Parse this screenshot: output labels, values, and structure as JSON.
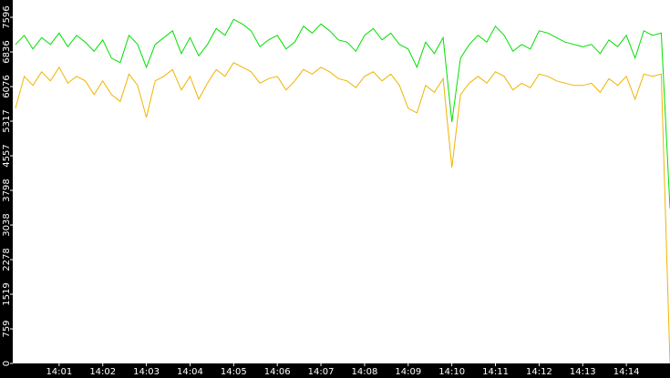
{
  "chart_data": {
    "type": "line",
    "categories": [
      null,
      null,
      null,
      null,
      null,
      "14:01",
      null,
      null,
      null,
      null,
      "14:02",
      null,
      null,
      null,
      null,
      "14:03",
      null,
      null,
      null,
      null,
      "14:04",
      null,
      null,
      null,
      null,
      "14:05",
      null,
      null,
      null,
      null,
      "14:06",
      null,
      null,
      null,
      null,
      "14:07",
      null,
      null,
      null,
      null,
      "14:08",
      null,
      null,
      null,
      null,
      "14:09",
      null,
      null,
      null,
      null,
      "14:10",
      null,
      null,
      null,
      null,
      "14:11",
      null,
      null,
      null,
      null,
      "14:12",
      null,
      null,
      null,
      null,
      "14:13",
      null,
      null,
      null,
      null,
      "14:14",
      null,
      null,
      null,
      null,
      null
    ],
    "series": [
      {
        "color": "#00e000",
        "values": [
          7000,
          7200,
          6900,
          7150,
          7000,
          7250,
          6950,
          7200,
          7050,
          6850,
          7100,
          6700,
          6600,
          7200,
          7000,
          6500,
          7000,
          7150,
          7300,
          6800,
          7150,
          6750,
          7000,
          7350,
          7200,
          7550,
          7450,
          7300,
          6950,
          7100,
          7200,
          6900,
          7050,
          7400,
          7250,
          7450,
          7300,
          7100,
          7050,
          6850,
          7200,
          7350,
          7100,
          7250,
          7000,
          6900,
          6500,
          7050,
          6800,
          7150,
          5300,
          6700,
          7000,
          7200,
          7050,
          7400,
          7200,
          6850,
          7000,
          6900,
          7300,
          7250,
          7150,
          7050,
          7000,
          6950,
          7000,
          6800,
          7100,
          6950,
          7200,
          6700,
          7300,
          7200,
          7250,
          3400
        ]
      },
      {
        "color": "#f0b400",
        "values": [
          5600,
          6300,
          6100,
          6400,
          6200,
          6500,
          6150,
          6300,
          6200,
          5900,
          6200,
          5900,
          5750,
          6350,
          6100,
          5400,
          6200,
          6300,
          6450,
          6000,
          6300,
          5800,
          6150,
          6450,
          6300,
          6600,
          6500,
          6400,
          6150,
          6250,
          6300,
          6000,
          6200,
          6450,
          6350,
          6500,
          6400,
          6250,
          6200,
          6050,
          6300,
          6400,
          6200,
          6350,
          6100,
          5600,
          5500,
          6100,
          5950,
          6250,
          4300,
          5900,
          6150,
          6300,
          6150,
          6400,
          6300,
          6000,
          6150,
          6050,
          6350,
          6300,
          6200,
          6150,
          6100,
          6100,
          6150,
          5950,
          6250,
          6100,
          6300,
          5800,
          6350,
          6300,
          6350,
          0
        ]
      }
    ],
    "ylim": [
      0,
      7976
    ],
    "yticks": [
      0,
      759,
      1519,
      2278,
      3038,
      3798,
      4557,
      5317,
      6076,
      6836,
      7596
    ]
  }
}
